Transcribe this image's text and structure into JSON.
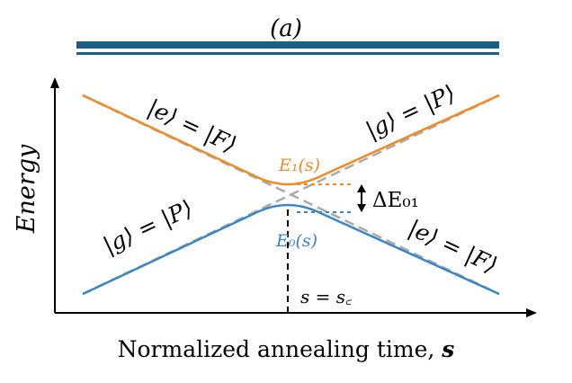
{
  "panel_label": "(a)",
  "y_axis_label": "Energy",
  "x_axis_label_text": "Normalized annealing time, ",
  "x_axis_label_symbol": "s",
  "labels": {
    "upper_left": "|e⟩ = |F⟩",
    "upper_right": "|g⟩ = |P⟩",
    "lower_left": "|g⟩ = |P⟩",
    "lower_right": "|e⟩ = |F⟩",
    "e1": "E₁(s)",
    "e0": "E₀(s)",
    "gap": "ΔE₀₁",
    "critical": "s = s꜀"
  },
  "colors": {
    "header_bar": "#1b5e86",
    "upper_curve": "#f08a24",
    "lower_curve": "#3a86c4",
    "asymptote": "#aaaaaa",
    "text": "#000000"
  }
}
